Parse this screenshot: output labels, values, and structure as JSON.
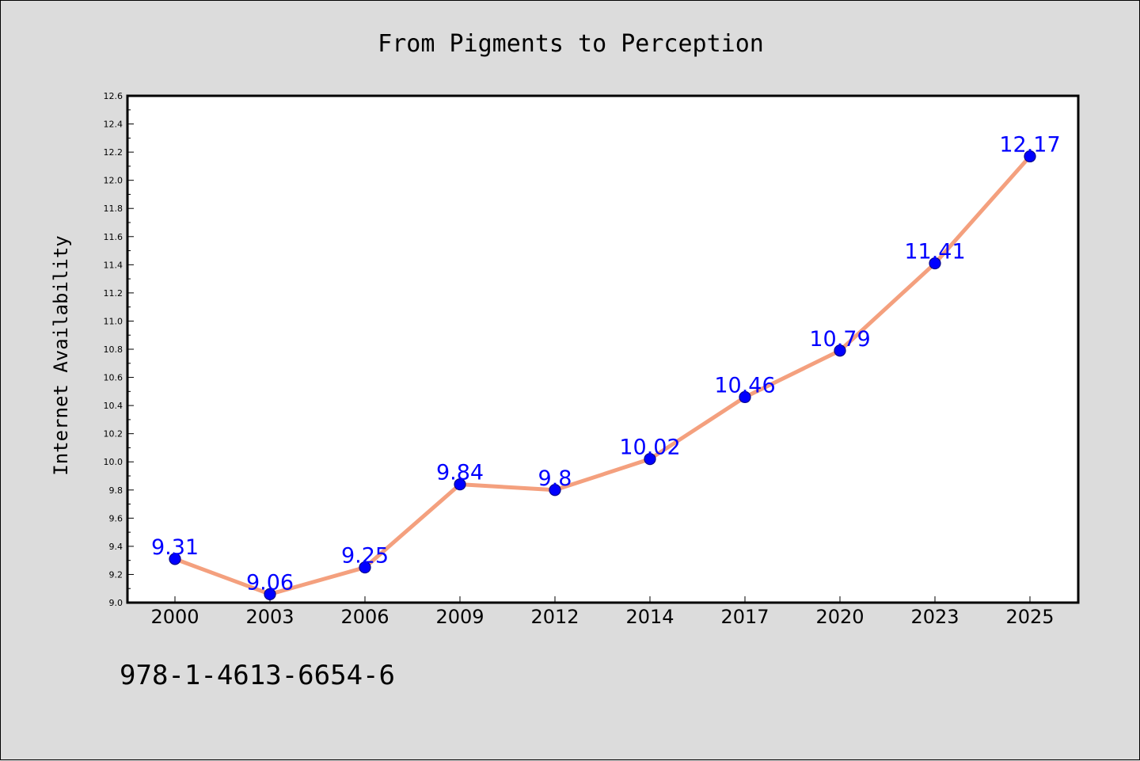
{
  "chart_data": {
    "type": "line",
    "title": "From Pigments to Perception",
    "xlabel": "",
    "ylabel": "Internet Availability",
    "categories": [
      "2000",
      "2003",
      "2006",
      "2009",
      "2012",
      "2014",
      "2017",
      "2020",
      "2023",
      "2025"
    ],
    "series": [
      {
        "values": [
          9.31,
          9.06,
          9.25,
          9.84,
          9.8,
          10.02,
          10.46,
          10.79,
          11.41,
          12.17
        ],
        "data_labels": [
          "9.31",
          "9.06",
          "9.25",
          "9.84",
          "9.8",
          "10.02",
          "10.46",
          "10.79",
          "11.41",
          "12.17"
        ]
      }
    ],
    "ylim": [
      9.0,
      12.6
    ],
    "yticks": [
      "9.0",
      "9.2",
      "9.4",
      "9.6",
      "9.8",
      "10.0",
      "10.2",
      "10.4",
      "10.6",
      "10.8",
      "11.0",
      "11.2",
      "11.4",
      "11.6",
      "11.8",
      "12.0",
      "12.2",
      "12.4",
      "12.6"
    ],
    "grid": false,
    "legend": "none",
    "colors": {
      "line": "#f4a07e",
      "marker": "#0000ff",
      "marker_edge": "#00008b",
      "data_label": "#0000ff",
      "plot_background": "#ffffff",
      "figure_background": "#dcdcdc"
    }
  },
  "footnote": "978-1-4613-6654-6"
}
